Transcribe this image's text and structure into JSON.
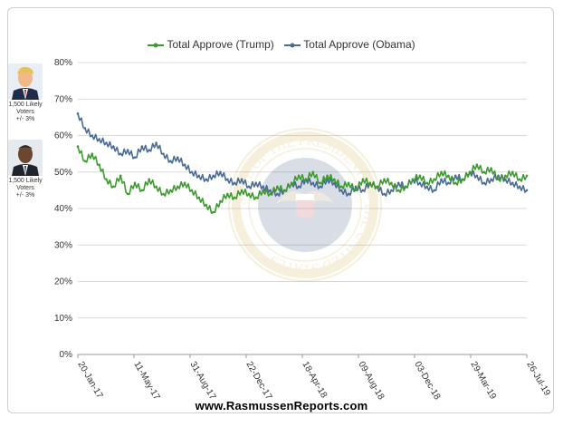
{
  "chart_data": {
    "type": "line",
    "title": "",
    "xlabel": "",
    "ylabel": "",
    "ylim": [
      0,
      80
    ],
    "yticks": [
      "0%",
      "10%",
      "20%",
      "30%",
      "40%",
      "50%",
      "60%",
      "70%",
      "80%"
    ],
    "x_tick_labels": [
      "20-Jan-17",
      "11-May-17",
      "31-Aug-17",
      "22-Dec-17",
      "18-Apr-18",
      "09-Aug-18",
      "03-Dec-18",
      "29-Mar-19",
      "26-Jul-19"
    ],
    "grid": true,
    "legend_position": "top-center",
    "series": [
      {
        "name": "Total Approve (Trump)",
        "color": "#3c9a2e",
        "values": [
          57,
          53,
          55,
          52,
          48,
          46,
          49,
          44,
          47,
          45,
          48,
          46,
          44,
          45,
          46,
          47,
          45,
          43,
          41,
          39,
          42,
          44,
          43,
          45,
          44,
          43,
          45,
          44,
          46,
          45,
          47,
          49,
          48,
          50,
          47,
          49,
          48,
          46,
          47,
          45,
          48,
          47,
          46,
          48,
          47,
          45,
          46,
          48,
          49,
          47,
          48,
          50,
          49,
          47,
          48,
          50,
          52,
          50,
          51,
          48,
          49,
          50,
          48,
          49
        ]
      },
      {
        "name": "Total Approve (Obama)",
        "color": "#4a6b95",
        "values": [
          66,
          62,
          60,
          59,
          58,
          57,
          55,
          56,
          54,
          57,
          56,
          58,
          55,
          53,
          54,
          52,
          50,
          49,
          48,
          49,
          50,
          48,
          47,
          48,
          46,
          47,
          46,
          45,
          44,
          45,
          47,
          46,
          48,
          47,
          46,
          48,
          47,
          45,
          44,
          46,
          45,
          47,
          46,
          44,
          45,
          47,
          46,
          48,
          47,
          46,
          45,
          48,
          47,
          49,
          48,
          50,
          49,
          47,
          48,
          49,
          48,
          47,
          46,
          45
        ]
      }
    ]
  },
  "legend": {
    "trump_label": "Total Approve (Trump)",
    "obama_label": "Total Approve (Obama)"
  },
  "sidebar": {
    "trump_caption": [
      "1,500 Likely",
      "Voters",
      "+/- 3%"
    ],
    "obama_caption": [
      "1,500 Likely",
      "Voters",
      "+/- 3%"
    ]
  },
  "watermark": {
    "seal_text": "SEAL OF THE PRESIDENT OF THE UNITED STATES"
  },
  "footer": {
    "site": "www.RasmussenReports.com"
  }
}
